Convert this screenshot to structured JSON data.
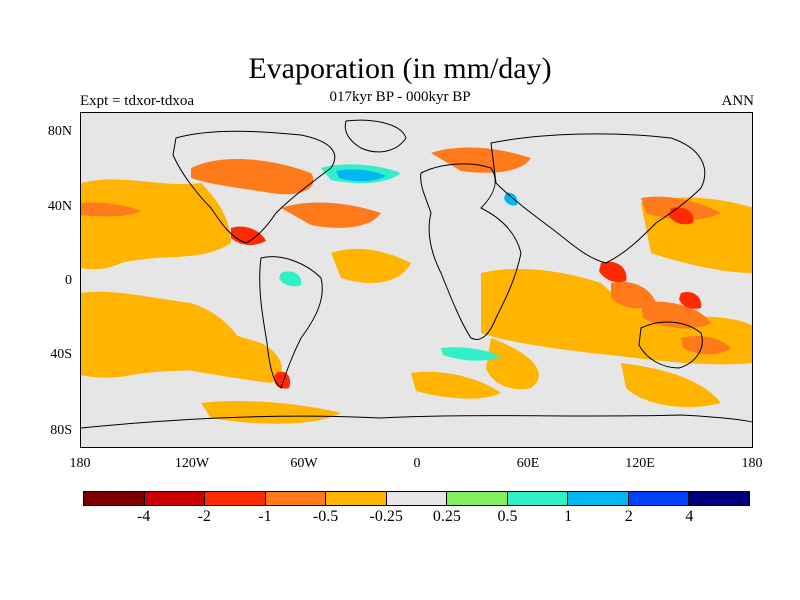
{
  "title": "Evaporation (in mm/day)",
  "subtitle": "017kyr BP - 000kyr BP",
  "left_label": "Expt = tdxor-tdxoa",
  "right_label": "ANN",
  "y_ticks": [
    "80N",
    "40N",
    "0",
    "40S",
    "80S"
  ],
  "x_ticks": [
    "180",
    "120W",
    "60W",
    "0",
    "60E",
    "120E",
    "180"
  ],
  "colorbar": {
    "colors": [
      "#7a0000",
      "#cc0000",
      "#ff2a00",
      "#ff7a1a",
      "#ffb400",
      "#e6e6e6",
      "#80f060",
      "#30f0c8",
      "#00b8f0",
      "#0040ff",
      "#00007a"
    ],
    "labels": [
      "-4",
      "-2",
      "-1",
      "-0.5",
      "-0.25",
      "0.25",
      "0.5",
      "1",
      "2",
      "4"
    ]
  }
}
